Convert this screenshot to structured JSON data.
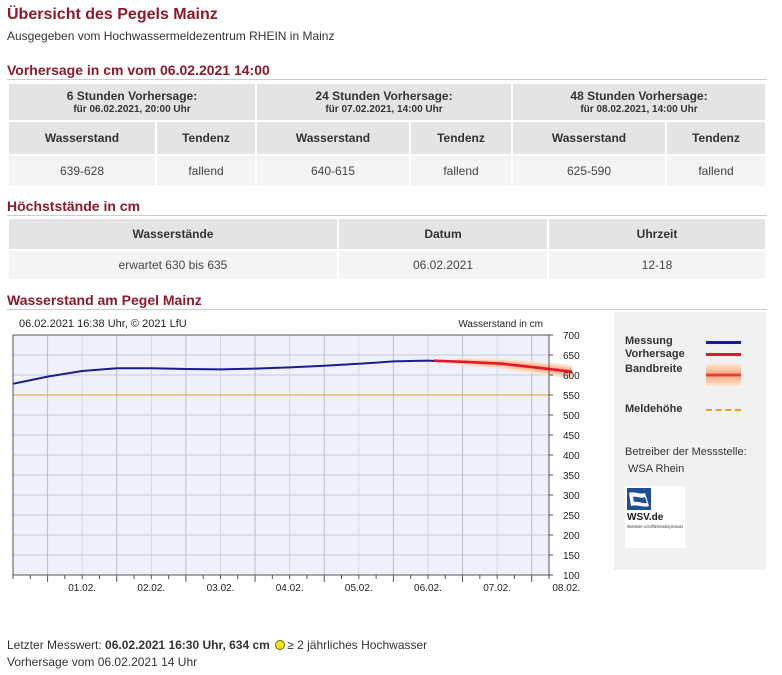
{
  "header": {
    "title": "Übersicht des Pegels Mainz",
    "subtitle": "Ausgegeben vom Hochwassermeldezentrum RHEIN in Mainz"
  },
  "forecast": {
    "heading": "Vorhersage in cm vom 06.02.2021 14:00",
    "groups": [
      {
        "title": "6 Stunden Vorhersage:",
        "sub": "für 06.02.2021, 20:00 Uhr",
        "col1": "Wasserstand",
        "col2": "Tendenz",
        "value": "639-628",
        "trend": "fallend"
      },
      {
        "title": "24 Stunden Vorhersage:",
        "sub": "für 07.02.2021, 14:00 Uhr",
        "col1": "Wasserstand",
        "col2": "Tendenz",
        "value": "640-615",
        "trend": "fallend"
      },
      {
        "title": "48 Stunden Vorhersage:",
        "sub": "für 08.02.2021, 14:00 Uhr",
        "col1": "Wasserstand",
        "col2": "Tendenz",
        "value": "625-590",
        "trend": "fallend"
      }
    ]
  },
  "peaks": {
    "heading": "Höchststände in cm",
    "headers": [
      "Wasserstände",
      "Datum",
      "Uhrzeit"
    ],
    "row": [
      "erwartet 630 bis 635",
      "06.02.2021",
      "12-18"
    ]
  },
  "chart_section": {
    "heading": "Wasserstand am Pegel Mainz",
    "timestamp": "06.02.2021 16:38 Uhr, © 2021 LfU",
    "axis_label": "Wasserstand in cm"
  },
  "legend": {
    "measurement": "Messung",
    "forecast": "Vorhersage",
    "band": "Bandbreite",
    "alert_level": "Meldehöhe",
    "operator_label": "Betreiber der Messstelle:",
    "operator_name": "WSA Rhein",
    "logo_text": "WSV.de",
    "logo_sub": "Wasserstraßen- und Schifffahrtsverwaltung des Bundes"
  },
  "footer": {
    "line1_prefix": "Letzter Messwert:",
    "line1_value": "06.02.2021 16:30 Uhr, 634 cm",
    "line1_suffix": "≥ 2 jährliches Hochwasser",
    "line2": "Vorhersage vom 06.02.2021 14 Uhr"
  },
  "colors": {
    "measurement": "#1c1c8c",
    "forecast": "#e4142b",
    "band": "#f6b48a",
    "alert_level": "#e8a020"
  },
  "chart_data": {
    "type": "line",
    "ylabel": "Wasserstand in cm",
    "ylim": [
      100,
      700
    ],
    "yticks": [
      100,
      150,
      200,
      250,
      300,
      350,
      400,
      450,
      500,
      550,
      600,
      650,
      700
    ],
    "xlim_days": [
      31.5,
      39.25
    ],
    "xtick_labels": [
      "01.02.",
      "02.02.",
      "03.02.",
      "04.02.",
      "05.02.",
      "06.02.",
      "07.02.",
      "08.02."
    ],
    "grid": true,
    "alert_level": 550,
    "series": [
      {
        "name": "Messung",
        "x": [
          "31.01. 12:00",
          "01.02. 00:00",
          "01.02. 12:00",
          "02.02. 00:00",
          "02.02. 12:00",
          "03.02. 00:00",
          "03.02. 12:00",
          "04.02. 00:00",
          "04.02. 12:00",
          "05.02. 00:00",
          "05.02. 12:00",
          "06.02. 00:00",
          "06.02. 12:00",
          "06.02. 16:30"
        ],
        "y": [
          578,
          596,
          610,
          617,
          617,
          615,
          614,
          616,
          619,
          623,
          628,
          634,
          636,
          634
        ]
      },
      {
        "name": "Vorhersage",
        "x": [
          "06.02. 14:00",
          "06.02. 20:00",
          "07.02. 00:00",
          "07.02. 14:00",
          "08.02. 00:00",
          "08.02. 14:00"
        ],
        "y": [
          636,
          634,
          633,
          628,
          620,
          608
        ]
      }
    ],
    "band": {
      "name": "Bandbreite",
      "x": [
        "06.02. 14:00",
        "06.02. 20:00",
        "07.02. 00:00",
        "07.02. 14:00",
        "08.02. 00:00",
        "08.02. 14:00"
      ],
      "lower": [
        633,
        628,
        624,
        615,
        604,
        590
      ],
      "upper": [
        639,
        639,
        642,
        640,
        635,
        625
      ]
    }
  }
}
